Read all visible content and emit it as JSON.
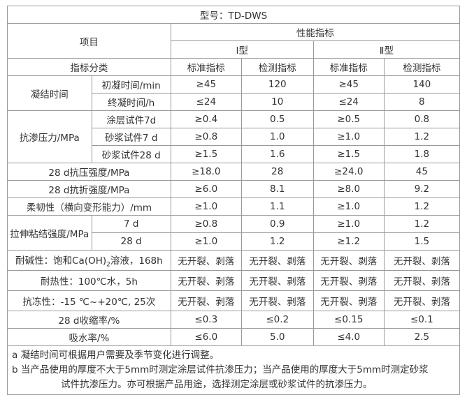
{
  "model_title": "型号：TD-DWS",
  "header": {
    "item": "项目",
    "performance": "性能指标",
    "type1": "Ⅰ型",
    "type2": "Ⅱ型",
    "category": "指标分类",
    "std": "标准指标",
    "test": "检测指标"
  },
  "rows": {
    "setting": {
      "label": "凝结时间",
      "initial": {
        "sub": "初凝时间/min",
        "std1": "≥45",
        "test1": "120",
        "std2": "≥45",
        "test2": "140"
      },
      "final": {
        "sub": "终凝时间/h",
        "std1": "≤24",
        "test1": "10",
        "std2": "≤24",
        "test2": "8"
      }
    },
    "impermeability": {
      "label": "抗渗压力/MPa",
      "coating7": {
        "sub": "涂层试件7d",
        "std1": "≥0.4",
        "test1": "0.5",
        "std2": "≥0.5",
        "test2": "0.8"
      },
      "mortar7": {
        "sub": "砂浆试件7 d",
        "std1": "≥0.8",
        "test1": "1.0",
        "std2": "≥1.0",
        "test2": "1.2"
      },
      "mortar28": {
        "sub": "砂浆试件28 d",
        "std1": "≥1.5",
        "test1": "1.6",
        "std2": "≥1.5",
        "test2": "1.8"
      }
    },
    "compressive": {
      "label": "28 d抗压强度/MPa",
      "std1": "≥18.0",
      "test1": "28",
      "std2": "≥24.0",
      "test2": "45"
    },
    "flexural": {
      "label": "28 d抗折强度/MPa",
      "std1": "≥6.0",
      "test1": "8.1",
      "std2": "≥8.0",
      "test2": "9.2"
    },
    "flexibility": {
      "label": "柔韧性（横向变形能力）/mm",
      "std1": "≥1.0",
      "test1": "1.1",
      "std2": "≥1.0",
      "test2": "1.2"
    },
    "bond": {
      "label": "拉伸粘结强度/MPa",
      "d7": {
        "sub": "7 d",
        "std1": "≥0.8",
        "test1": "0.9",
        "std2": "≥1.0",
        "test2": "1.2"
      },
      "d28": {
        "sub": "28 d",
        "std1": "≥1.0",
        "test1": "1.2",
        "std2": "≥1.2",
        "test2": "1.5"
      }
    },
    "alkali": {
      "label_pre": "耐碱性：饱和Ca(OH)",
      "label_sub": "2",
      "label_post": "溶液，168h",
      "std1": "无开裂、剥落",
      "test1": "无开裂、剥落",
      "std2": "无开裂、剥落",
      "test2": "无开裂、剥落"
    },
    "heat": {
      "label": "耐热性：100℃水，5h",
      "std1": "无开裂、剥落",
      "test1": "无开裂、剥落",
      "std2": "无开裂、剥落",
      "test2": "无开裂、剥落"
    },
    "freeze": {
      "label": "抗冻性：-15 ℃~+20℃, 25次",
      "std1": "无开裂、剥落",
      "test1": "无开裂、剥落",
      "std2": "无开裂、剥落",
      "test2": "无开裂、剥落"
    },
    "shrinkage": {
      "label": "28 d收缩率/%",
      "std1": "≤0.3",
      "test1": "≤0.2",
      "std2": "≤0.15",
      "test2": "≤0.1"
    },
    "absorption": {
      "label": "吸水率/%",
      "std1": "≤6.0",
      "test1": "5.0",
      "std2": "≤4.0",
      "test2": "2.5"
    }
  },
  "notes": {
    "a": "a 凝结时间可根据用户需要及季节变化进行调整。",
    "b1": "b 当产品使用的厚度不大于5mm时测定涂层试件抗渗压力；当产品使用的厚度大于5mm时测定砂浆",
    "b2": "试件抗渗压力。亦可根据产品用途，选择测定涂层或砂浆试件的抗渗压力。"
  }
}
